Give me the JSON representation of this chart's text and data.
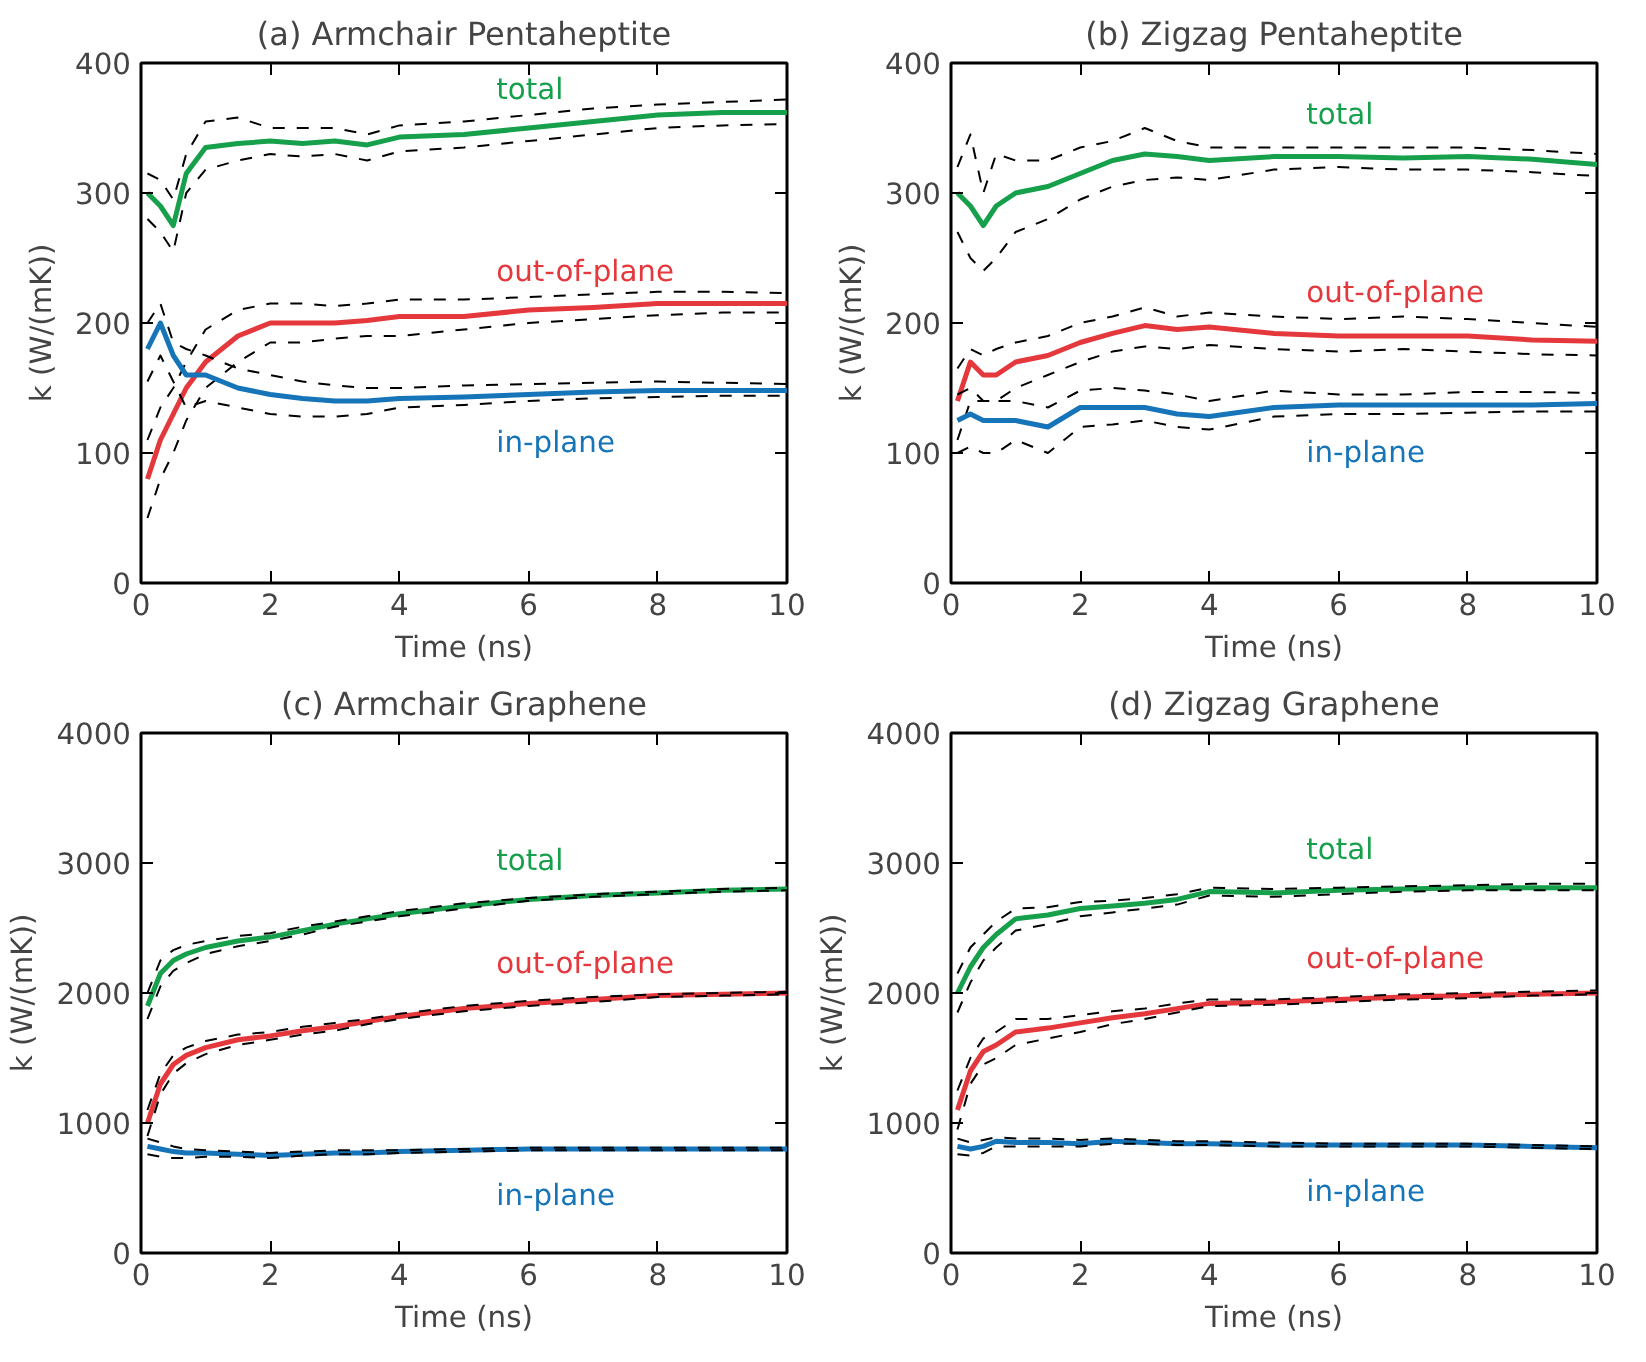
{
  "chart_data": [
    {
      "type": "line",
      "title": "(a) Armchair Pentaheptite",
      "xlabel": "Time (ns)",
      "ylabel": "k (W/(mK))",
      "xlim": [
        0,
        10
      ],
      "ylim": [
        0,
        400
      ],
      "xticks": [
        0,
        2,
        4,
        6,
        8,
        10
      ],
      "yticks": [
        0,
        100,
        200,
        300,
        400
      ],
      "line_style": "solid",
      "x": [
        0.1,
        0.3,
        0.5,
        0.7,
        1,
        1.5,
        2,
        2.5,
        3,
        3.5,
        4,
        5,
        6,
        7,
        8,
        9,
        10
      ],
      "series": [
        {
          "name": "total",
          "color": "#16a04c",
          "values": [
            300,
            290,
            275,
            315,
            335,
            338,
            340,
            338,
            340,
            337,
            343,
            345,
            350,
            355,
            360,
            362,
            362
          ]
        },
        {
          "color": "#000000",
          "line_style": "dashed",
          "values": [
            315,
            310,
            295,
            330,
            355,
            358,
            350,
            350,
            350,
            345,
            352,
            355,
            360,
            365,
            368,
            370,
            372
          ]
        },
        {
          "color": "#000000",
          "line_style": "dashed",
          "values": [
            280,
            270,
            255,
            300,
            318,
            325,
            330,
            328,
            330,
            325,
            332,
            335,
            340,
            345,
            350,
            352,
            353
          ]
        },
        {
          "name": "out-of-plane",
          "color": "#e5383d",
          "values": [
            80,
            110,
            130,
            150,
            170,
            190,
            200,
            200,
            200,
            202,
            205,
            205,
            210,
            212,
            215,
            215,
            215
          ]
        },
        {
          "color": "#000000",
          "line_style": "dashed",
          "values": [
            110,
            135,
            150,
            170,
            195,
            210,
            215,
            215,
            213,
            215,
            218,
            218,
            220,
            222,
            224,
            224,
            223
          ]
        },
        {
          "color": "#000000",
          "line_style": "dashed",
          "values": [
            50,
            80,
            100,
            125,
            150,
            170,
            185,
            185,
            188,
            190,
            190,
            195,
            200,
            203,
            206,
            208,
            208
          ]
        },
        {
          "name": "in-plane",
          "color": "#1674b9",
          "values": [
            180,
            200,
            175,
            160,
            160,
            150,
            145,
            142,
            140,
            140,
            142,
            143,
            145,
            147,
            148,
            148,
            148
          ]
        },
        {
          "color": "#000000",
          "line_style": "dashed",
          "values": [
            200,
            215,
            185,
            180,
            175,
            165,
            160,
            155,
            152,
            150,
            150,
            152,
            153,
            154,
            155,
            154,
            153
          ]
        },
        {
          "color": "#000000",
          "line_style": "dashed",
          "values": [
            155,
            175,
            155,
            135,
            140,
            135,
            130,
            128,
            128,
            130,
            135,
            137,
            140,
            142,
            143,
            144,
            144
          ]
        }
      ]
    },
    {
      "type": "line",
      "title": "(b) Zigzag Pentaheptite",
      "xlabel": "Time (ns)",
      "ylabel": "k (W/(mK))",
      "xlim": [
        0,
        10
      ],
      "ylim": [
        0,
        400
      ],
      "xticks": [
        0,
        2,
        4,
        6,
        8,
        10
      ],
      "yticks": [
        0,
        100,
        200,
        300,
        400
      ],
      "line_style": "solid",
      "x": [
        0.1,
        0.3,
        0.5,
        0.7,
        1,
        1.5,
        2,
        2.5,
        3,
        3.5,
        4,
        5,
        6,
        7,
        8,
        9,
        10
      ],
      "series": [
        {
          "name": "total",
          "color": "#16a04c",
          "values": [
            300,
            290,
            275,
            290,
            300,
            305,
            315,
            325,
            330,
            328,
            325,
            328,
            328,
            327,
            328,
            326,
            322
          ]
        },
        {
          "color": "#000000",
          "line_style": "dashed",
          "values": [
            320,
            345,
            300,
            330,
            325,
            325,
            335,
            340,
            350,
            340,
            335,
            335,
            335,
            335,
            335,
            333,
            330
          ]
        },
        {
          "color": "#000000",
          "line_style": "dashed",
          "values": [
            270,
            250,
            240,
            250,
            270,
            280,
            295,
            305,
            310,
            312,
            310,
            318,
            320,
            318,
            318,
            316,
            313
          ]
        },
        {
          "name": "out-of-plane",
          "color": "#e5383d",
          "values": [
            140,
            170,
            160,
            160,
            170,
            175,
            185,
            192,
            198,
            195,
            197,
            192,
            190,
            190,
            190,
            187,
            186
          ]
        },
        {
          "color": "#000000",
          "line_style": "dashed",
          "values": [
            165,
            180,
            175,
            180,
            185,
            190,
            200,
            205,
            212,
            205,
            208,
            205,
            203,
            205,
            203,
            200,
            197
          ]
        },
        {
          "color": "#000000",
          "line_style": "dashed",
          "values": [
            110,
            140,
            140,
            140,
            150,
            160,
            170,
            178,
            182,
            180,
            183,
            180,
            178,
            180,
            178,
            176,
            175
          ]
        },
        {
          "name": "in-plane",
          "color": "#1674b9",
          "values": [
            125,
            130,
            125,
            125,
            125,
            120,
            135,
            135,
            135,
            130,
            128,
            135,
            137,
            137,
            137,
            137,
            138
          ]
        },
        {
          "color": "#000000",
          "line_style": "dashed",
          "values": [
            145,
            150,
            140,
            140,
            140,
            135,
            148,
            150,
            148,
            145,
            140,
            148,
            145,
            145,
            147,
            147,
            146
          ]
        },
        {
          "color": "#000000",
          "line_style": "dashed",
          "values": [
            100,
            105,
            100,
            100,
            110,
            100,
            120,
            122,
            125,
            120,
            118,
            128,
            130,
            130,
            131,
            132,
            132
          ]
        }
      ]
    },
    {
      "type": "line",
      "title": "(c) Armchair Graphene",
      "xlabel": "Time (ns)",
      "ylabel": "k (W/(mK))",
      "xlim": [
        0,
        10
      ],
      "ylim": [
        0,
        4000
      ],
      "xticks": [
        0,
        2,
        4,
        6,
        8,
        10
      ],
      "yticks": [
        0,
        1000,
        2000,
        3000,
        4000
      ],
      "line_style": "solid",
      "x": [
        0.1,
        0.3,
        0.5,
        0.7,
        1,
        1.5,
        2,
        2.5,
        3,
        3.5,
        4,
        5,
        6,
        7,
        8,
        9,
        10
      ],
      "series": [
        {
          "name": "total",
          "color": "#16a04c",
          "values": [
            1900,
            2150,
            2250,
            2300,
            2350,
            2400,
            2430,
            2480,
            2530,
            2570,
            2610,
            2670,
            2720,
            2750,
            2770,
            2790,
            2800
          ]
        },
        {
          "color": "#000000",
          "line_style": "dashed",
          "values": [
            2000,
            2250,
            2330,
            2370,
            2400,
            2440,
            2460,
            2510,
            2550,
            2590,
            2630,
            2690,
            2730,
            2760,
            2780,
            2800,
            2810
          ]
        },
        {
          "color": "#000000",
          "line_style": "dashed",
          "values": [
            1800,
            2050,
            2170,
            2230,
            2300,
            2360,
            2400,
            2450,
            2510,
            2550,
            2590,
            2650,
            2710,
            2740,
            2760,
            2780,
            2790
          ]
        },
        {
          "name": "out-of-plane",
          "color": "#e5383d",
          "values": [
            1000,
            1300,
            1450,
            1520,
            1580,
            1640,
            1670,
            1710,
            1740,
            1780,
            1820,
            1880,
            1920,
            1950,
            1980,
            1990,
            2000
          ]
        },
        {
          "color": "#000000",
          "line_style": "dashed",
          "values": [
            1100,
            1380,
            1520,
            1580,
            1630,
            1680,
            1700,
            1740,
            1770,
            1800,
            1840,
            1900,
            1940,
            1970,
            1990,
            2000,
            2010
          ]
        },
        {
          "color": "#000000",
          "line_style": "dashed",
          "values": [
            900,
            1220,
            1380,
            1460,
            1530,
            1600,
            1640,
            1680,
            1710,
            1760,
            1800,
            1860,
            1900,
            1930,
            1970,
            1980,
            1990
          ]
        },
        {
          "name": "in-plane",
          "color": "#1674b9",
          "values": [
            820,
            800,
            780,
            770,
            770,
            760,
            750,
            760,
            770,
            770,
            780,
            790,
            800,
            800,
            800,
            800,
            800
          ]
        },
        {
          "color": "#000000",
          "line_style": "dashed",
          "values": [
            880,
            850,
            820,
            800,
            790,
            780,
            770,
            780,
            790,
            790,
            790,
            800,
            810,
            810,
            810,
            810,
            810
          ]
        },
        {
          "color": "#000000",
          "line_style": "dashed",
          "values": [
            760,
            740,
            730,
            730,
            740,
            740,
            730,
            750,
            760,
            760,
            770,
            780,
            790,
            790,
            790,
            790,
            790
          ]
        }
      ]
    },
    {
      "type": "line",
      "title": "(d) Zigzag Graphene",
      "xlabel": "Time (ns)",
      "ylabel": "k (W/(mK))",
      "xlim": [
        0,
        10
      ],
      "ylim": [
        0,
        4000
      ],
      "xticks": [
        0,
        2,
        4,
        6,
        8,
        10
      ],
      "yticks": [
        0,
        1000,
        2000,
        3000,
        4000
      ],
      "line_style": "solid",
      "x": [
        0.1,
        0.3,
        0.5,
        0.7,
        1,
        1.5,
        2,
        2.5,
        3,
        3.5,
        4,
        5,
        6,
        7,
        8,
        9,
        10
      ],
      "series": [
        {
          "name": "total",
          "color": "#16a04c",
          "values": [
            2000,
            2200,
            2350,
            2450,
            2570,
            2600,
            2650,
            2670,
            2690,
            2720,
            2780,
            2770,
            2790,
            2800,
            2810,
            2810,
            2810
          ]
        },
        {
          "color": "#000000",
          "line_style": "dashed",
          "values": [
            2150,
            2350,
            2450,
            2550,
            2650,
            2660,
            2700,
            2710,
            2730,
            2760,
            2810,
            2800,
            2810,
            2820,
            2830,
            2840,
            2840
          ]
        },
        {
          "color": "#000000",
          "line_style": "dashed",
          "values": [
            1850,
            2080,
            2250,
            2350,
            2480,
            2530,
            2590,
            2620,
            2650,
            2680,
            2750,
            2740,
            2760,
            2780,
            2790,
            2790,
            2790
          ]
        },
        {
          "name": "out-of-plane",
          "color": "#e5383d",
          "values": [
            1100,
            1400,
            1550,
            1600,
            1700,
            1730,
            1770,
            1810,
            1840,
            1880,
            1920,
            1930,
            1950,
            1970,
            1980,
            1990,
            2000
          ]
        },
        {
          "color": "#000000",
          "line_style": "dashed",
          "values": [
            1250,
            1500,
            1650,
            1700,
            1800,
            1800,
            1830,
            1860,
            1880,
            1920,
            1950,
            1950,
            1970,
            1990,
            2000,
            2010,
            2020
          ]
        },
        {
          "color": "#000000",
          "line_style": "dashed",
          "values": [
            950,
            1300,
            1450,
            1500,
            1600,
            1650,
            1700,
            1760,
            1800,
            1850,
            1900,
            1910,
            1930,
            1950,
            1960,
            1980,
            1990
          ]
        },
        {
          "name": "in-plane",
          "color": "#1674b9",
          "values": [
            820,
            800,
            820,
            860,
            850,
            850,
            840,
            860,
            850,
            840,
            840,
            830,
            830,
            830,
            830,
            820,
            810
          ]
        },
        {
          "color": "#000000",
          "line_style": "dashed",
          "values": [
            880,
            850,
            870,
            890,
            880,
            880,
            870,
            880,
            870,
            860,
            860,
            850,
            840,
            840,
            840,
            830,
            820
          ]
        },
        {
          "color": "#000000",
          "line_style": "dashed",
          "values": [
            760,
            750,
            770,
            820,
            820,
            820,
            820,
            840,
            840,
            830,
            830,
            820,
            820,
            820,
            820,
            810,
            800
          ]
        }
      ]
    }
  ]
}
